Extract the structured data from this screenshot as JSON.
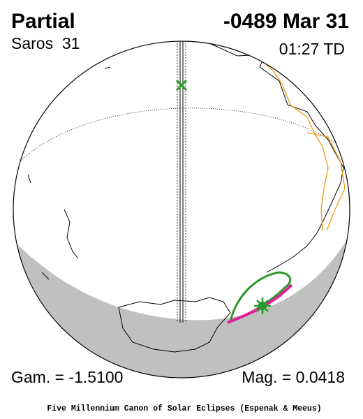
{
  "header": {
    "title": "Partial",
    "date": "-0489 Mar 31",
    "saros": "Saros  31",
    "time": "01:27 TD"
  },
  "footer": {
    "gamma": "Gam. = -1.5100",
    "magnitude": "Mag. = 0.0418",
    "credit": "Five Millennium Canon of Solar Eclipses (Espenak & Meeus)"
  }
}
